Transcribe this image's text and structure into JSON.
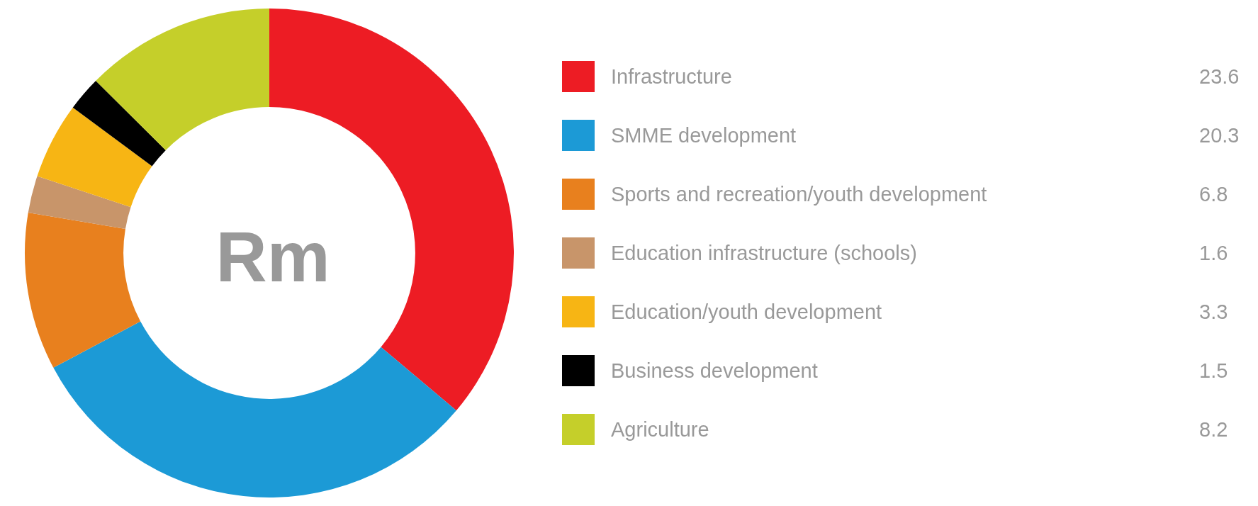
{
  "chart_data": {
    "type": "donut",
    "title": "Rm",
    "categories": [
      "Infrastructure",
      "SMME development",
      "Sports and recreation/youth development",
      "Education infrastructure (schools)",
      "Education/youth development",
      "Business development",
      "Agriculture"
    ],
    "values": [
      23.6,
      20.3,
      6.8,
      1.6,
      3.3,
      1.5,
      8.2
    ],
    "colors": [
      "#ed1c24",
      "#1c9ad6",
      "#e8801e",
      "#c8956a",
      "#f7b514",
      "#000000",
      "#c5cf2a"
    ],
    "legend": "right",
    "data_labels": true
  }
}
